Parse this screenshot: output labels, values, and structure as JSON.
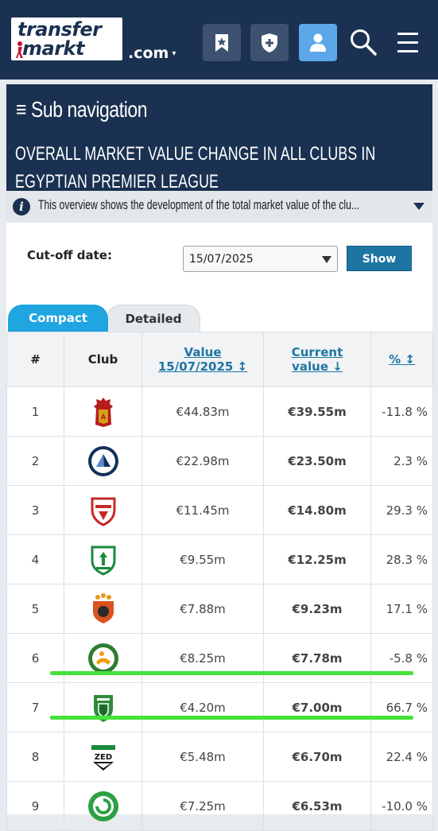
{
  "header": {
    "logo_line1": "transfer",
    "logo_line2": "markt",
    "domain": ".com",
    "icons": [
      "bookmark-icon",
      "shield-plus-icon",
      "user-icon",
      "search-icon",
      "hamburger-menu-icon"
    ]
  },
  "subnav_label": "≡ Sub navigation",
  "page_title": "OVERALL MARKET VALUE CHANGE IN ALL CLUBS IN EGYPTIAN PREMIER LEAGUE",
  "info_text": "This overview shows the development of the total market value of the clu...",
  "cutoff": {
    "label": "Cut-off date:",
    "value": "15/07/2025",
    "button": "Show"
  },
  "tabs": [
    {
      "label": "Compact",
      "active": true
    },
    {
      "label": "Detailed",
      "active": false
    }
  ],
  "table": {
    "headers": {
      "rank": "#",
      "club": "Club",
      "value_line1": "Value",
      "value_line2": "15/07/2025",
      "current_line1": "Current",
      "current_line2": "value",
      "pct": "%"
    },
    "rows": [
      {
        "rank": "1",
        "value": "€44.83m",
        "current": "€39.55m",
        "pct": "-11.8 %",
        "trend": "neg"
      },
      {
        "rank": "2",
        "value": "€22.98m",
        "current": "€23.50m",
        "pct": "2.3 %",
        "trend": "pos"
      },
      {
        "rank": "3",
        "value": "€11.45m",
        "current": "€14.80m",
        "pct": "29.3 %",
        "trend": "pos"
      },
      {
        "rank": "4",
        "value": "€9.55m",
        "current": "€12.25m",
        "pct": "28.3 %",
        "trend": "pos"
      },
      {
        "rank": "5",
        "value": "€7.88m",
        "current": "€9.23m",
        "pct": "17.1 %",
        "trend": "pos"
      },
      {
        "rank": "6",
        "value": "€8.25m",
        "current": "€7.78m",
        "pct": "-5.8 %",
        "trend": "neg"
      },
      {
        "rank": "7",
        "value": "€4.20m",
        "current": "€7.00m",
        "pct": "66.7 %",
        "trend": "pos"
      },
      {
        "rank": "8",
        "value": "€5.48m",
        "current": "€6.70m",
        "pct": "22.4 %",
        "trend": "pos"
      },
      {
        "rank": "9",
        "value": "€7.25m",
        "current": "€6.53m",
        "pct": "-10.0 %",
        "trend": "neg"
      }
    ]
  },
  "colors": {
    "navy": "#1a3151",
    "link_blue": "#1d75a3",
    "negative": "#b2111a",
    "positive": "#6f9e12",
    "highlight": "#46e23a"
  }
}
